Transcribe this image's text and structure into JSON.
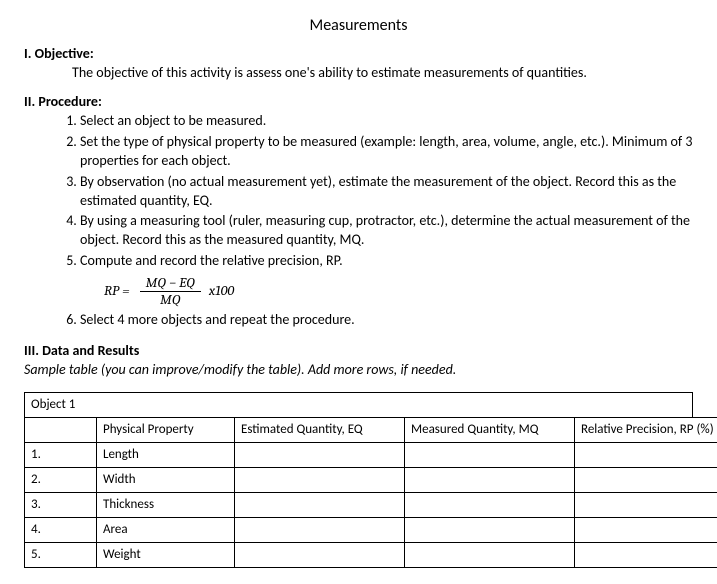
{
  "title": "Measurements",
  "sections": {
    "objective": {
      "heading": "I. Objective:",
      "text": "The objective of this activity is assess one's ability to estimate measurements of quantities."
    },
    "procedure": {
      "heading": "II. Procedure:",
      "steps": [
        "Select an object to be measured.",
        "Set the type of physical property to be measured (example: length, area, volume, angle, etc.). Minimum of 3 properties for each object.",
        "By observation (no actual measurement yet), estimate the measurement of the object. Record this as the estimated quantity, EQ.",
        "By using a measuring tool (ruler, measuring cup, protractor, etc.), determine the actual measurement of the object. Record this as the measured quantity, MQ.",
        "Compute and record the relative precision, RP.",
        "Select 4 more objects and repeat the procedure."
      ],
      "formula": {
        "lhs": "RP =",
        "numerator": "MQ − EQ",
        "denominator": "MQ",
        "tail": "x100"
      }
    },
    "data_results": {
      "heading": "III. Data and Results",
      "note": "Sample table (you can improve/modify the table). Add more rows, if needed."
    }
  },
  "table": {
    "object_label": "Object 1",
    "columns": [
      "",
      "Physical Property",
      "Estimated Quantity, EQ",
      "Measured Quantity, MQ",
      "Relative Precision, RP (%)"
    ],
    "rows": [
      {
        "n": "1.",
        "prop": "Length",
        "eq": "",
        "mq": "",
        "rp": ""
      },
      {
        "n": "2.",
        "prop": "Width",
        "eq": "",
        "mq": "",
        "rp": ""
      },
      {
        "n": "3.",
        "prop": "Thickness",
        "eq": "",
        "mq": "",
        "rp": ""
      },
      {
        "n": "4.",
        "prop": "Area",
        "eq": "",
        "mq": "",
        "rp": ""
      },
      {
        "n": "5.",
        "prop": "Weight",
        "eq": "",
        "mq": "",
        "rp": ""
      }
    ]
  }
}
